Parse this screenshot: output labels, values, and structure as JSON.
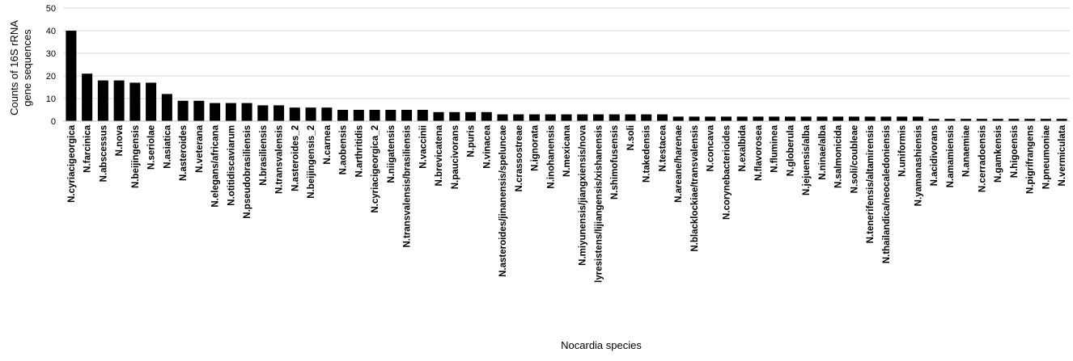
{
  "chart_data": {
    "type": "bar",
    "title": "",
    "xlabel": "Nocardia species",
    "ylabel_lines": [
      "Counts of 16S rRNA",
      "gene sequences"
    ],
    "ylim": [
      0,
      50
    ],
    "yticks": [
      0,
      10,
      20,
      30,
      40,
      50
    ],
    "grid": true,
    "bar_color": "#000000",
    "grid_color": "#d9d9d9",
    "categories": [
      "N.cyriacigeorgica",
      "N.farcinica",
      "N.abscessus",
      "N.nova",
      "N.beijingensis",
      "N.seriolae",
      "N.asiatica",
      "N.asteroides",
      "N.veterana",
      "N.elegans/africana",
      "N.otitidiscaviarum",
      "N.pseudobrasiliensis",
      "N.brasiliensis",
      "N.transvalensis",
      "N.asteroides_2",
      "N.beijingensis_2",
      "N.carnea",
      "N.aobensis",
      "N.arthritidis",
      "N.cyriacigeorgica_2",
      "N.niigatensis",
      "N.transvalensis/brasiliensis",
      "N.vaccinii",
      "N.brevicatena",
      "N.paucivorans",
      "N.puris",
      "N.vinacea",
      "N.asteroides/jinanensis/speluncae",
      "N.crassostreae",
      "N.ignorata",
      "N.inohanensis",
      "N.mexicana",
      "N.miyunensis/jiangxiensis/nova",
      "lyresistens/lijiangensis/xishanensis",
      "N.shimofusensis",
      "N.soli",
      "N.takedensis",
      "N.testacea",
      "N.areane/harenae",
      "N.blacklockiae/transvalensis",
      "N.concava",
      "N.corynebacterioides",
      "N.exalbida",
      "N.flavorosea",
      "N.fluminea",
      "N.globerula",
      "N.jejuensis/alba",
      "N.ninae/alba",
      "N.salmonicida",
      "N.soli/coubleae",
      "N.tenerifensis/altamirensis",
      "N.thailandica/neocaledoniensis",
      "N.uniformis",
      "N.yamanashiensis",
      "N.acidivorans",
      "N.amamiensis",
      "N.anaemiae",
      "N.cerradoensis",
      "N.gamkensis",
      "N.higoensis",
      "N.pigrifrangens",
      "N.pneumoniae",
      "N.vermiculata"
    ],
    "values": [
      40,
      21,
      18,
      18,
      17,
      17,
      12,
      9,
      9,
      8,
      8,
      8,
      7,
      7,
      6,
      6,
      6,
      5,
      5,
      5,
      5,
      5,
      5,
      4,
      4,
      4,
      4,
      3,
      3,
      3,
      3,
      3,
      3,
      3,
      3,
      3,
      3,
      3,
      2,
      2,
      2,
      2,
      2,
      2,
      2,
      2,
      2,
      2,
      2,
      2,
      2,
      2,
      2,
      2,
      1,
      1,
      1,
      1,
      1,
      1,
      1,
      1,
      1
    ]
  }
}
